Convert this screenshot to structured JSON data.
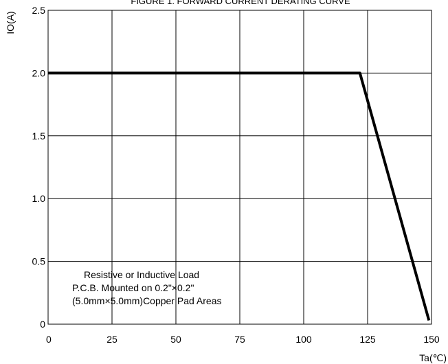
{
  "chart_data": {
    "type": "line",
    "title": "FIGURE 1. FORWARD CURRENT DERATING CURVE",
    "xlabel": "Ta(℃)",
    "ylabel": "IO(A)",
    "xlim": [
      0,
      150
    ],
    "ylim": [
      0,
      2.5
    ],
    "x_ticks": [
      "0",
      "25",
      "50",
      "75",
      "100",
      "125",
      "150"
    ],
    "y_ticks": [
      "0",
      "0.5",
      "1.0",
      "1.5",
      "2.0",
      "2.5"
    ],
    "grid": true,
    "series": [
      {
        "x": [
          0,
          122,
          149
        ],
        "y": [
          2.0,
          2.0,
          0.03
        ]
      }
    ],
    "annotation": [
      "Resistive or Inductive Load",
      "P.C.B. Mounted on 0.2\"×0.2\"",
      "(5.0mm×5.0mm)Copper Pad Areas"
    ]
  }
}
